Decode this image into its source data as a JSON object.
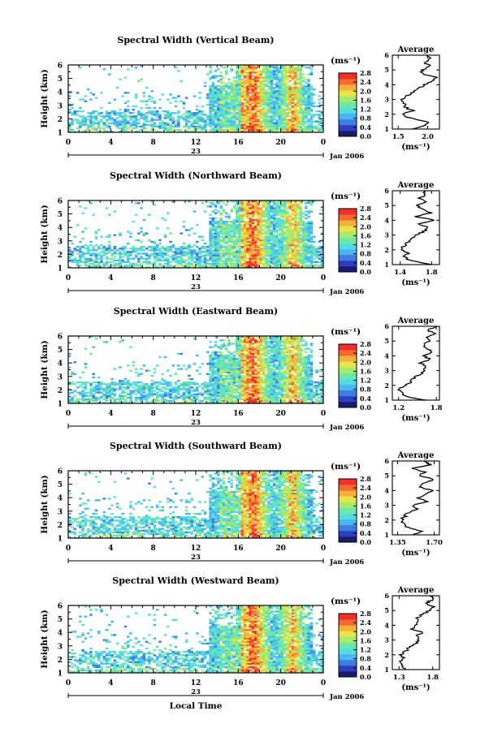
{
  "figure": {
    "xlabel": "Local Time",
    "date_label": "Jan 2006",
    "day_label": "23",
    "colorbar_unit": "(ms⁻¹)",
    "avg_unit": "(ms⁻¹)",
    "avg_title": "Average",
    "colormap": [
      "#1a1a6e",
      "#2f3fbf",
      "#3c7fe0",
      "#49b6f0",
      "#54dde0",
      "#6ee8a8",
      "#a8ea6a",
      "#e6e64a",
      "#f5b13a",
      "#f36b2f",
      "#ee2f2a"
    ]
  },
  "chart_data": [
    {
      "type": "heatmap",
      "title": "Spectral Width (Vertical Beam)",
      "ylabel": "Height (km)",
      "xlabel": "",
      "x_ticks": [
        "0",
        "4",
        "8",
        "12",
        "16",
        "20",
        "0"
      ],
      "y_ticks": [
        "1",
        "2",
        "3",
        "4",
        "5",
        "6"
      ],
      "xlim": [
        0,
        24
      ],
      "ylim": [
        1,
        6
      ],
      "colorbar_ticks": [
        "0.0",
        "0.4",
        "0.8",
        "1.2",
        "1.6",
        "2.0",
        "2.4",
        "2.8"
      ],
      "clim": [
        0.0,
        2.8
      ],
      "seed": 11,
      "density": 0.62,
      "avg": {
        "x_ticks": [
          "1.5",
          "2.0"
        ],
        "xlim": [
          1.4,
          2.2
        ],
        "heights": [
          1.0,
          1.25,
          1.5,
          1.75,
          2.0,
          2.25,
          2.5,
          2.75,
          3.0,
          3.25,
          3.5,
          3.75,
          4.0,
          4.25,
          4.5,
          4.75,
          5.0,
          5.25,
          5.5,
          5.75,
          6.0
        ],
        "values": [
          1.75,
          1.95,
          2.0,
          1.7,
          1.55,
          1.75,
          1.6,
          1.6,
          1.55,
          1.65,
          1.75,
          1.85,
          1.95,
          2.05,
          2.15,
          1.9,
          1.9,
          2.05,
          1.95,
          2.05,
          2.0
        ]
      }
    },
    {
      "type": "heatmap",
      "title": "Spectral Width (Northward Beam)",
      "ylabel": "Height (km)",
      "xlabel": "",
      "x_ticks": [
        "0",
        "4",
        "8",
        "12",
        "16",
        "20",
        "0"
      ],
      "y_ticks": [
        "1",
        "2",
        "3",
        "4",
        "5",
        "6"
      ],
      "xlim": [
        0,
        24
      ],
      "ylim": [
        1,
        6
      ],
      "colorbar_ticks": [
        "0.0",
        "0.4",
        "0.8",
        "1.2",
        "1.6",
        "2.0",
        "2.4",
        "2.8"
      ],
      "clim": [
        0.0,
        2.8
      ],
      "seed": 23,
      "density": 0.66,
      "avg": {
        "x_ticks": [
          "1.4",
          "1.8"
        ],
        "xlim": [
          1.3,
          1.9
        ],
        "heights": [
          1.0,
          1.25,
          1.5,
          1.75,
          2.0,
          2.25,
          2.5,
          2.75,
          3.0,
          3.25,
          3.5,
          3.75,
          4.0,
          4.25,
          4.5,
          4.75,
          5.0,
          5.25,
          5.5,
          5.75,
          6.0
        ],
        "values": [
          1.82,
          1.55,
          1.45,
          1.5,
          1.4,
          1.45,
          1.5,
          1.55,
          1.6,
          1.7,
          1.75,
          1.65,
          1.85,
          1.6,
          1.8,
          1.7,
          1.6,
          1.75,
          1.65,
          1.72,
          1.7
        ]
      }
    },
    {
      "type": "heatmap",
      "title": "Spectral Width (Eastward Beam)",
      "ylabel": "Height (km)",
      "xlabel": "",
      "x_ticks": [
        "0",
        "4",
        "8",
        "12",
        "16",
        "20",
        "0"
      ],
      "y_ticks": [
        "1",
        "2",
        "3",
        "4",
        "5",
        "6"
      ],
      "xlim": [
        0,
        24
      ],
      "ylim": [
        1,
        6
      ],
      "colorbar_ticks": [
        "0.0",
        "0.4",
        "0.8",
        "1.2",
        "1.6",
        "2.0",
        "2.4",
        "2.8"
      ],
      "clim": [
        0.0,
        2.8
      ],
      "seed": 37,
      "density": 0.66,
      "avg": {
        "x_ticks": [
          "1.2",
          "1.8"
        ],
        "xlim": [
          1.1,
          1.85
        ],
        "heights": [
          1.0,
          1.25,
          1.5,
          1.75,
          2.0,
          2.25,
          2.5,
          2.75,
          3.0,
          3.25,
          3.5,
          3.75,
          4.0,
          4.25,
          4.5,
          4.75,
          5.0,
          5.25,
          5.5,
          5.75,
          6.0
        ],
        "values": [
          1.65,
          1.3,
          1.25,
          1.2,
          1.3,
          1.4,
          1.45,
          1.55,
          1.6,
          1.65,
          1.55,
          1.7,
          1.6,
          1.75,
          1.65,
          1.6,
          1.7,
          1.62,
          1.78,
          1.65,
          1.8
        ]
      }
    },
    {
      "type": "heatmap",
      "title": "Spectral Width (Southward Beam)",
      "ylabel": "Height (km)",
      "xlabel": "",
      "x_ticks": [
        "0",
        "4",
        "8",
        "12",
        "16",
        "20",
        "0"
      ],
      "y_ticks": [
        "1",
        "2",
        "3",
        "4",
        "5",
        "6"
      ],
      "xlim": [
        0,
        24
      ],
      "ylim": [
        1,
        6
      ],
      "colorbar_ticks": [
        "0.0",
        "0.4",
        "0.8",
        "1.2",
        "1.6",
        "2.0",
        "2.4",
        "2.8"
      ],
      "clim": [
        0.0,
        2.8
      ],
      "seed": 53,
      "density": 0.64,
      "avg": {
        "x_ticks": [
          "1.35",
          "1.70"
        ],
        "xlim": [
          1.3,
          1.75
        ],
        "heights": [
          1.0,
          1.25,
          1.5,
          1.75,
          2.0,
          2.25,
          2.5,
          2.75,
          3.0,
          3.25,
          3.5,
          3.75,
          4.0,
          4.25,
          4.5,
          4.75,
          5.0,
          5.25,
          5.5,
          5.75,
          6.0
        ],
        "values": [
          1.5,
          1.58,
          1.45,
          1.4,
          1.38,
          1.42,
          1.45,
          1.55,
          1.5,
          1.62,
          1.55,
          1.6,
          1.68,
          1.55,
          1.6,
          1.7,
          1.55,
          1.62,
          1.5,
          1.66,
          1.6
        ]
      }
    },
    {
      "type": "heatmap",
      "title": "Spectral Width (Westward Beam)",
      "ylabel": "Height (km)",
      "xlabel": "Local Time",
      "x_ticks": [
        "0",
        "4",
        "8",
        "12",
        "16",
        "20",
        "0"
      ],
      "y_ticks": [
        "1",
        "2",
        "3",
        "4",
        "5",
        "6"
      ],
      "xlim": [
        0,
        24
      ],
      "ylim": [
        1,
        6
      ],
      "colorbar_ticks": [
        "0.0",
        "0.4",
        "0.8",
        "1.2",
        "1.6",
        "2.0",
        "2.4",
        "2.8"
      ],
      "clim": [
        0.0,
        2.8
      ],
      "seed": 71,
      "density": 0.63,
      "avg": {
        "x_ticks": [
          "1.3",
          "1.8"
        ],
        "xlim": [
          1.2,
          1.9
        ],
        "heights": [
          1.0,
          1.25,
          1.5,
          1.75,
          2.0,
          2.25,
          2.5,
          2.75,
          3.0,
          3.25,
          3.5,
          3.75,
          4.0,
          4.25,
          4.5,
          4.75,
          5.0,
          5.25,
          5.5,
          5.75,
          6.0
        ],
        "values": [
          1.4,
          1.35,
          1.3,
          1.38,
          1.32,
          1.4,
          1.45,
          1.55,
          1.6,
          1.55,
          1.65,
          1.5,
          1.55,
          1.6,
          1.58,
          1.65,
          1.75,
          1.8,
          1.7,
          1.8,
          1.75
        ]
      }
    }
  ]
}
